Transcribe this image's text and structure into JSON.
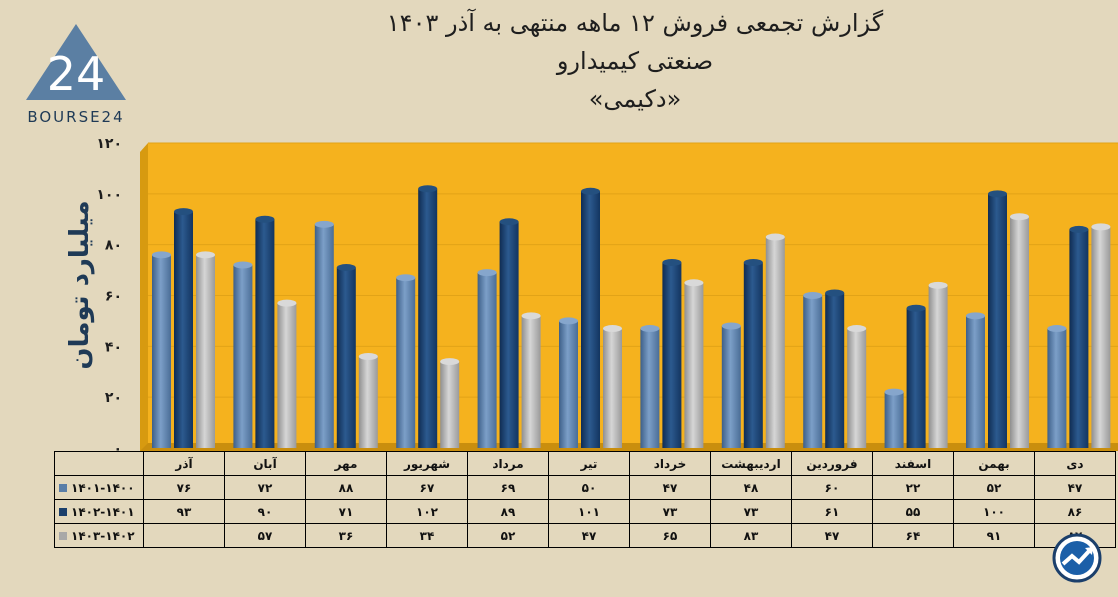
{
  "title": {
    "line1": "گزارش تجمعی فروش ۱۲ ماهه منتهی به آذر ۱۴۰۳",
    "line2": "صنعتی کیمیدارو",
    "line3": "«دکیمی»"
  },
  "logo": {
    "text": "BOURSE24",
    "mark": "24"
  },
  "chart_data": {
    "type": "bar",
    "ylabel": "میلیارد تومان",
    "ylim": [
      0,
      120
    ],
    "yticks": [
      "۰",
      "۲۰",
      "۴۰",
      "۶۰",
      "۸۰",
      "۱۰۰",
      "۱۲۰"
    ],
    "categories": [
      "دی",
      "بهمن",
      "اسفند",
      "فروردین",
      "اردیبهشت",
      "خرداد",
      "تیر",
      "مرداد",
      "شهریور",
      "مهر",
      "آبان",
      "آذر"
    ],
    "series": [
      {
        "name": "۱۴۰۱-۱۴۰۰",
        "color": "#5a7ea8",
        "values": [
          47,
          52,
          22,
          60,
          48,
          47,
          50,
          69,
          67,
          88,
          72,
          76
        ],
        "labels": [
          "۴۷",
          "۵۲",
          "۲۲",
          "۶۰",
          "۴۸",
          "۴۷",
          "۵۰",
          "۶۹",
          "۶۷",
          "۸۸",
          "۷۲",
          "۷۶"
        ]
      },
      {
        "name": "۱۴۰۲-۱۴۰۱",
        "color": "#1b3f6b",
        "values": [
          86,
          100,
          55,
          61,
          73,
          73,
          101,
          89,
          102,
          71,
          90,
          93
        ],
        "labels": [
          "۸۶",
          "۱۰۰",
          "۵۵",
          "۶۱",
          "۷۳",
          "۷۳",
          "۱۰۱",
          "۸۹",
          "۱۰۲",
          "۷۱",
          "۹۰",
          "۹۳"
        ]
      },
      {
        "name": "۱۴۰۳-۱۴۰۲",
        "color": "#a8a8a8",
        "values": [
          87,
          91,
          64,
          47,
          83,
          65,
          47,
          52,
          34,
          36,
          57,
          76
        ],
        "labels": [
          "۸۷",
          "۹۱",
          "۶۴",
          "۴۷",
          "۸۳",
          "۶۵",
          "۴۷",
          "۵۲",
          "۳۴",
          "۳۶",
          "۵۷",
          ""
        ]
      }
    ],
    "plot_background": "#f5b21e",
    "grid": true
  },
  "corner_icon": "bourse-trend-icon"
}
